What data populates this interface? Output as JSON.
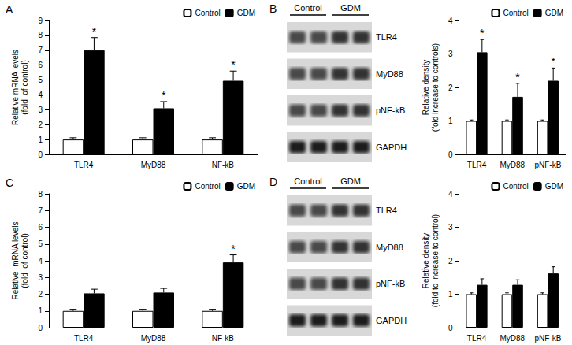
{
  "chart_data": [
    {
      "type": "bar",
      "title": "A",
      "categories": [
        "TLR4",
        "MyD88",
        "NF-kB"
      ],
      "series": [
        {
          "name": "Control",
          "color": "#ffffff",
          "values": [
            1,
            1,
            1
          ],
          "errors": [
            0.12,
            0.12,
            0.12
          ]
        },
        {
          "name": "GDM",
          "color": "#000000",
          "values": [
            7.0,
            3.1,
            4.95
          ],
          "errors": [
            0.85,
            0.45,
            0.65
          ]
        }
      ],
      "annotations": [
        {
          "series": "GDM",
          "category": "TLR4",
          "text": "*"
        },
        {
          "series": "GDM",
          "category": "MyD88",
          "text": "*"
        },
        {
          "series": "GDM",
          "category": "NF-kB",
          "text": "*"
        }
      ],
      "ylabel": "Relative mRNA levels\n(fold  of control)",
      "ylim": [
        0,
        9
      ],
      "yticks": [
        0,
        1,
        2,
        3,
        4,
        5,
        6,
        7,
        8,
        9
      ],
      "grid": false,
      "legend": "upper right"
    },
    {
      "type": "bar",
      "categories": [
        "TLR4",
        "MyD88",
        "pNF-kB"
      ],
      "series": [
        {
          "name": "Control",
          "color": "#ffffff",
          "values": [
            1,
            1,
            1
          ],
          "errors": [
            0.03,
            0.03,
            0.03
          ]
        },
        {
          "name": "GDM",
          "color": "#000000",
          "values": [
            3.05,
            1.72,
            2.2
          ],
          "errors": [
            0.38,
            0.4,
            0.38
          ]
        }
      ],
      "annotations": [
        {
          "series": "GDM",
          "category": "TLR4",
          "text": "*"
        },
        {
          "series": "GDM",
          "category": "MyD88",
          "text": "*"
        },
        {
          "series": "GDM",
          "category": "pNF-kB",
          "text": "*"
        }
      ],
      "ylabel": "Relative density\n(fold increase to controls)",
      "ylim": [
        0,
        4
      ],
      "yticks": [
        0,
        1,
        2,
        3,
        4
      ],
      "grid": false,
      "legend": "upper right"
    },
    {
      "type": "bar",
      "title": "C",
      "categories": [
        "TLR4",
        "MyD88",
        "NF-kB"
      ],
      "series": [
        {
          "name": "Control",
          "color": "#ffffff",
          "values": [
            1,
            1,
            1
          ],
          "errors": [
            0.1,
            0.1,
            0.1
          ]
        },
        {
          "name": "GDM",
          "color": "#000000",
          "values": [
            2.05,
            2.1,
            3.9
          ],
          "errors": [
            0.25,
            0.25,
            0.45
          ]
        }
      ],
      "annotations": [
        {
          "series": "GDM",
          "category": "NF-kB",
          "text": "*"
        }
      ],
      "ylabel": "Relative  mRNA levels\n(fold  of control)",
      "ylim": [
        0,
        8
      ],
      "yticks": [
        0,
        1,
        2,
        3,
        4,
        5,
        6,
        7,
        8
      ],
      "grid": false,
      "legend": "upper right"
    },
    {
      "type": "bar",
      "categories": [
        "TLR4",
        "MyD88",
        "pNF-kB"
      ],
      "series": [
        {
          "name": "Control",
          "color": "#ffffff",
          "values": [
            1,
            1,
            1
          ],
          "errors": [
            0.04,
            0.04,
            0.04
          ]
        },
        {
          "name": "GDM",
          "color": "#000000",
          "values": [
            1.28,
            1.28,
            1.62
          ],
          "errors": [
            0.18,
            0.15,
            0.2
          ]
        }
      ],
      "annotations": [],
      "ylabel": "Relative density\n(fold to increase to control)",
      "ylim": [
        0,
        4
      ],
      "yticks": [
        0,
        1,
        2,
        3,
        4
      ],
      "grid": false,
      "legend": "upper right"
    }
  ],
  "blots": [
    {
      "panel": "B",
      "groups": [
        "Control",
        "GDM"
      ],
      "bands": [
        "TLR4",
        "MyD88",
        "pNF-kB",
        "GAPDH"
      ]
    },
    {
      "panel": "D",
      "groups": [
        "Control",
        "GDM"
      ],
      "bands": [
        "TLR4",
        "MyD88",
        "pNF-kB",
        "GAPDH"
      ]
    }
  ]
}
